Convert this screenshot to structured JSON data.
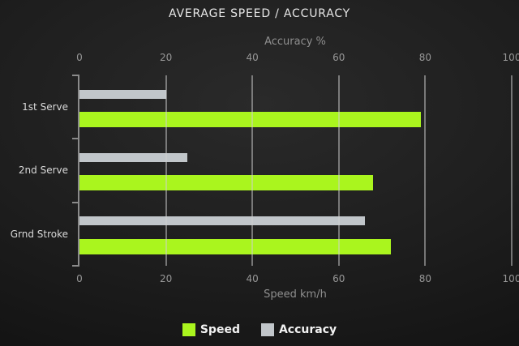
{
  "title": "AVERAGE SPEED / ACCURACY",
  "colors": {
    "speed": "#aaf51e",
    "accuracy": "#c1c6ca",
    "grid": "#9a9a9a",
    "axis_text": "#8f8f8f",
    "tick_text": "#979797",
    "category_text": "#dadada",
    "title_text": "#e7e7e7",
    "legend_text": "#f2f2f2",
    "background": "#1d1d1d"
  },
  "chart_data": {
    "type": "bar",
    "orientation": "horizontal",
    "title": "AVERAGE SPEED / ACCURACY",
    "categories": [
      "1st Serve",
      "2nd Serve",
      "Grnd Stroke"
    ],
    "series": [
      {
        "name": "Speed",
        "axis": "bottom",
        "color_key": "speed",
        "values": [
          79,
          68,
          72
        ]
      },
      {
        "name": "Accuracy",
        "axis": "top",
        "color_key": "accuracy",
        "values": [
          20,
          25,
          66
        ]
      }
    ],
    "top_axis": {
      "label": "Accuracy %",
      "ticks": [
        0,
        20,
        40,
        60,
        80,
        100
      ],
      "range": [
        0,
        100
      ]
    },
    "bottom_axis": {
      "label": "Speed km/h",
      "ticks": [
        0,
        20,
        40,
        60,
        80,
        100
      ],
      "range": [
        0,
        100
      ]
    },
    "grid": true,
    "gridlines_over_bars": true,
    "legend_position": "bottom"
  },
  "legend": {
    "items": [
      {
        "label": "Speed",
        "color_key": "speed"
      },
      {
        "label": "Accuracy",
        "color_key": "accuracy"
      }
    ]
  }
}
